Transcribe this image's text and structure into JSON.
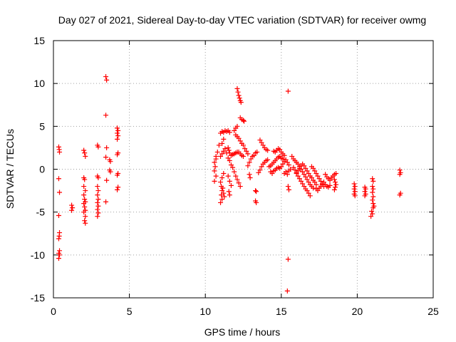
{
  "chart_data": {
    "type": "scatter",
    "title": "Day 027 of 2021, Sidereal Day-to-day VTEC variation (SDTVAR) for receiver owmg",
    "xlabel": "GPS time / hours",
    "ylabel": "SDTVAR / TECUs",
    "xlim": [
      0,
      25
    ],
    "ylim": [
      -15,
      15
    ],
    "xticks": [
      0,
      5,
      10,
      15,
      20,
      25
    ],
    "yticks": [
      -15,
      -10,
      -5,
      0,
      5,
      10,
      15
    ],
    "xtick_labels": [
      "0",
      "5",
      "10",
      "15",
      "20",
      "25"
    ],
    "ytick_labels": [
      "-15",
      "-10",
      "-5",
      "0",
      "5",
      "10",
      "15"
    ],
    "grid": true,
    "marker": "+",
    "color": "#ff0000",
    "series": [
      {
        "name": "SDTVAR",
        "points": [
          [
            0.35,
            2.6
          ],
          [
            0.38,
            2.3
          ],
          [
            0.4,
            2.0
          ],
          [
            0.35,
            -1.1
          ],
          [
            0.4,
            -2.7
          ],
          [
            0.35,
            -5.4
          ],
          [
            0.4,
            -7.4
          ],
          [
            0.38,
            -7.8
          ],
          [
            0.35,
            -8.1
          ],
          [
            0.4,
            -9.5
          ],
          [
            0.35,
            -9.8
          ],
          [
            0.4,
            -10.0
          ],
          [
            0.35,
            -10.4
          ],
          [
            1.2,
            -4.2
          ],
          [
            1.25,
            -4.5
          ],
          [
            1.2,
            -4.8
          ],
          [
            2.0,
            2.2
          ],
          [
            2.05,
            1.9
          ],
          [
            2.1,
            1.5
          ],
          [
            2.0,
            -1.0
          ],
          [
            2.05,
            -1.2
          ],
          [
            2.0,
            -2.0
          ],
          [
            2.1,
            -2.5
          ],
          [
            2.0,
            -3.0
          ],
          [
            2.05,
            -3.5
          ],
          [
            2.1,
            -3.8
          ],
          [
            2.0,
            -4.0
          ],
          [
            2.05,
            -4.4
          ],
          [
            2.1,
            -4.8
          ],
          [
            2.0,
            -5.0
          ],
          [
            2.1,
            -5.5
          ],
          [
            2.05,
            -6.0
          ],
          [
            2.1,
            -6.3
          ],
          [
            2.9,
            2.8
          ],
          [
            2.95,
            2.6
          ],
          [
            2.9,
            -0.8
          ],
          [
            2.95,
            -1.0
          ],
          [
            2.9,
            -2.0
          ],
          [
            2.95,
            -2.5
          ],
          [
            2.9,
            -3.0
          ],
          [
            2.95,
            -3.5
          ],
          [
            2.9,
            -3.9
          ],
          [
            2.95,
            -4.3
          ],
          [
            2.9,
            -4.7
          ],
          [
            2.95,
            -5.1
          ],
          [
            2.9,
            -5.5
          ],
          [
            3.45,
            10.8
          ],
          [
            3.5,
            10.4
          ],
          [
            3.45,
            6.3
          ],
          [
            3.5,
            2.5
          ],
          [
            3.45,
            1.4
          ],
          [
            3.5,
            -1.3
          ],
          [
            3.45,
            -3.8
          ],
          [
            3.7,
            1.1
          ],
          [
            3.75,
            0.9
          ],
          [
            3.7,
            -0.1
          ],
          [
            3.75,
            -0.3
          ],
          [
            4.2,
            4.8
          ],
          [
            4.25,
            4.5
          ],
          [
            4.2,
            4.2
          ],
          [
            4.25,
            3.9
          ],
          [
            4.2,
            3.5
          ],
          [
            4.25,
            1.9
          ],
          [
            4.2,
            1.7
          ],
          [
            4.25,
            -0.5
          ],
          [
            4.2,
            -0.7
          ],
          [
            4.25,
            -2.1
          ],
          [
            4.2,
            -2.4
          ],
          [
            10.6,
            0.8
          ],
          [
            10.65,
            0.3
          ],
          [
            10.6,
            -0.2
          ],
          [
            10.7,
            -0.8
          ],
          [
            10.6,
            -1.4
          ],
          [
            10.7,
            1.2
          ],
          [
            10.8,
            2.0
          ],
          [
            10.9,
            2.8
          ],
          [
            10.7,
            1.5
          ],
          [
            11.0,
            -1.5
          ],
          [
            11.05,
            -2.0
          ],
          [
            11.1,
            -2.5
          ],
          [
            11.05,
            -3.0
          ],
          [
            11.1,
            -3.5
          ],
          [
            11.0,
            -3.9
          ],
          [
            11.1,
            -1.0
          ],
          [
            11.2,
            -0.5
          ],
          [
            11.15,
            -2.2
          ],
          [
            11.2,
            -2.8
          ],
          [
            11.25,
            -3.2
          ],
          [
            11.0,
            4.2
          ],
          [
            11.1,
            4.4
          ],
          [
            11.2,
            4.3
          ],
          [
            11.3,
            4.5
          ],
          [
            11.4,
            4.4
          ],
          [
            11.5,
            4.5
          ],
          [
            11.6,
            4.3
          ],
          [
            11.2,
            3.5
          ],
          [
            11.1,
            3.0
          ],
          [
            11.0,
            1.5
          ],
          [
            11.1,
            1.8
          ],
          [
            11.2,
            2.1
          ],
          [
            11.3,
            2.4
          ],
          [
            11.4,
            1.9
          ],
          [
            11.5,
            1.3
          ],
          [
            11.6,
            1.0
          ],
          [
            11.7,
            0.5
          ],
          [
            11.8,
            0.2
          ],
          [
            11.9,
            -0.3
          ],
          [
            12.0,
            -0.8
          ],
          [
            12.1,
            -1.2
          ],
          [
            12.2,
            -1.6
          ],
          [
            12.3,
            -2.0
          ],
          [
            11.5,
            -0.8
          ],
          [
            11.6,
            -1.4
          ],
          [
            11.7,
            -1.9
          ],
          [
            11.55,
            -2.6
          ],
          [
            11.6,
            -3.0
          ],
          [
            11.5,
            2.5
          ],
          [
            11.55,
            2.2
          ],
          [
            11.6,
            1.9
          ],
          [
            11.7,
            1.6
          ],
          [
            11.8,
            1.7
          ],
          [
            11.9,
            1.8
          ],
          [
            12.0,
            1.9
          ],
          [
            12.1,
            2.0
          ],
          [
            12.2,
            2.0
          ],
          [
            12.3,
            1.8
          ],
          [
            12.4,
            1.6
          ],
          [
            12.5,
            1.5
          ],
          [
            11.9,
            4.5
          ],
          [
            12.0,
            4.8
          ],
          [
            12.1,
            5.0
          ],
          [
            12.0,
            4.0
          ],
          [
            12.1,
            3.8
          ],
          [
            12.2,
            3.6
          ],
          [
            12.3,
            3.3
          ],
          [
            12.4,
            3.0
          ],
          [
            12.5,
            2.8
          ],
          [
            12.6,
            2.4
          ],
          [
            12.7,
            2.1
          ],
          [
            12.8,
            1.8
          ],
          [
            12.1,
            9.4
          ],
          [
            12.15,
            9.0
          ],
          [
            12.2,
            8.6
          ],
          [
            12.25,
            8.3
          ],
          [
            12.3,
            8.0
          ],
          [
            12.35,
            7.8
          ],
          [
            12.3,
            6.0
          ],
          [
            12.4,
            5.8
          ],
          [
            12.5,
            5.7
          ],
          [
            12.55,
            5.6
          ],
          [
            12.8,
            0.4
          ],
          [
            12.9,
            0.8
          ],
          [
            13.0,
            1.2
          ],
          [
            13.1,
            1.5
          ],
          [
            13.2,
            1.6
          ],
          [
            13.3,
            1.9
          ],
          [
            13.4,
            2.0
          ],
          [
            12.9,
            -0.6
          ],
          [
            12.95,
            -1.0
          ],
          [
            13.3,
            -2.5
          ],
          [
            13.35,
            -2.6
          ],
          [
            13.3,
            -3.7
          ],
          [
            13.35,
            -3.9
          ],
          [
            13.6,
            3.4
          ],
          [
            13.7,
            3.1
          ],
          [
            13.8,
            2.8
          ],
          [
            13.9,
            2.5
          ],
          [
            14.0,
            2.3
          ],
          [
            14.1,
            2.2
          ],
          [
            13.5,
            -0.4
          ],
          [
            13.6,
            -0.1
          ],
          [
            13.7,
            0.3
          ],
          [
            13.8,
            0.6
          ],
          [
            13.9,
            0.8
          ],
          [
            14.0,
            1.0
          ],
          [
            14.1,
            1.1
          ],
          [
            14.2,
            0.3
          ],
          [
            14.3,
            0.4
          ],
          [
            14.4,
            0.6
          ],
          [
            14.5,
            0.8
          ],
          [
            14.6,
            1.0
          ],
          [
            14.7,
            1.2
          ],
          [
            14.8,
            1.4
          ],
          [
            14.9,
            1.5
          ],
          [
            15.0,
            1.3
          ],
          [
            15.1,
            1.2
          ],
          [
            14.3,
            -0.3
          ],
          [
            14.4,
            -0.5
          ],
          [
            14.5,
            -0.2
          ],
          [
            14.6,
            -0.1
          ],
          [
            14.7,
            0.1
          ],
          [
            14.8,
            0.2
          ],
          [
            14.9,
            0.1
          ],
          [
            14.5,
            2.1
          ],
          [
            14.6,
            2.0
          ],
          [
            14.7,
            2.2
          ],
          [
            14.8,
            2.4
          ],
          [
            14.9,
            2.3
          ],
          [
            15.0,
            2.0
          ],
          [
            15.1,
            1.8
          ],
          [
            15.2,
            1.6
          ],
          [
            15.0,
            0.3
          ],
          [
            15.1,
            0.6
          ],
          [
            15.2,
            0.9
          ],
          [
            15.3,
            1.1
          ],
          [
            15.4,
            0.8
          ],
          [
            15.5,
            0.5
          ],
          [
            15.2,
            -0.5
          ],
          [
            15.3,
            -0.3
          ],
          [
            15.4,
            -0.6
          ],
          [
            15.5,
            -0.2
          ],
          [
            15.6,
            0.0
          ],
          [
            15.45,
            9.1
          ],
          [
            15.45,
            -2.0
          ],
          [
            15.5,
            -2.4
          ],
          [
            15.45,
            -10.5
          ],
          [
            15.4,
            -14.2
          ],
          [
            15.7,
            1.5
          ],
          [
            15.8,
            1.2
          ],
          [
            15.9,
            1.0
          ],
          [
            16.0,
            0.8
          ],
          [
            16.1,
            0.6
          ],
          [
            16.2,
            0.3
          ],
          [
            16.3,
            0.0
          ],
          [
            16.4,
            -0.3
          ],
          [
            16.5,
            -0.6
          ],
          [
            16.6,
            -0.9
          ],
          [
            16.7,
            -1.2
          ],
          [
            16.8,
            -1.5
          ],
          [
            16.9,
            -1.8
          ],
          [
            17.0,
            -2.0
          ],
          [
            17.1,
            -2.2
          ],
          [
            15.8,
            0.2
          ],
          [
            15.9,
            -0.1
          ],
          [
            16.0,
            -0.4
          ],
          [
            16.1,
            -0.8
          ],
          [
            16.2,
            -1.1
          ],
          [
            16.3,
            -1.4
          ],
          [
            16.4,
            -1.7
          ],
          [
            16.5,
            -2.0
          ],
          [
            16.6,
            -2.3
          ],
          [
            16.7,
            -2.5
          ],
          [
            16.8,
            -2.8
          ],
          [
            16.9,
            -3.1
          ],
          [
            16.0,
            -0.5
          ],
          [
            16.1,
            -0.2
          ],
          [
            16.2,
            0.1
          ],
          [
            16.3,
            0.4
          ],
          [
            16.4,
            0.6
          ],
          [
            16.5,
            0.4
          ],
          [
            16.6,
            0.1
          ],
          [
            16.7,
            -0.2
          ],
          [
            16.8,
            -0.5
          ],
          [
            16.9,
            -0.8
          ],
          [
            17.0,
            -1.0
          ],
          [
            17.1,
            -1.3
          ],
          [
            17.2,
            -1.5
          ],
          [
            17.3,
            -1.8
          ],
          [
            17.0,
            0.3
          ],
          [
            17.1,
            0.1
          ],
          [
            17.2,
            -0.2
          ],
          [
            17.3,
            -0.5
          ],
          [
            17.4,
            -0.8
          ],
          [
            17.5,
            -1.1
          ],
          [
            17.6,
            -1.4
          ],
          [
            17.7,
            -1.7
          ],
          [
            17.8,
            -2.0
          ],
          [
            17.3,
            -2.3
          ],
          [
            17.4,
            -2.5
          ],
          [
            17.5,
            -2.2
          ],
          [
            17.6,
            -2.0
          ],
          [
            17.7,
            -1.8
          ],
          [
            17.8,
            -1.5
          ],
          [
            17.9,
            -1.8
          ],
          [
            18.0,
            -2.0
          ],
          [
            18.1,
            -2.1
          ],
          [
            18.2,
            -1.9
          ],
          [
            17.9,
            -0.6
          ],
          [
            18.0,
            -0.9
          ],
          [
            18.1,
            -1.1
          ],
          [
            18.2,
            -1.3
          ],
          [
            18.3,
            -1.0
          ],
          [
            18.4,
            -0.8
          ],
          [
            18.5,
            -0.6
          ],
          [
            18.6,
            -0.5
          ],
          [
            18.5,
            -1.2
          ],
          [
            18.55,
            -1.5
          ],
          [
            18.6,
            -1.8
          ],
          [
            18.55,
            -2.1
          ],
          [
            18.5,
            -2.4
          ],
          [
            19.8,
            -1.7
          ],
          [
            19.85,
            -2.0
          ],
          [
            19.8,
            -2.3
          ],
          [
            19.85,
            -2.6
          ],
          [
            19.8,
            -2.9
          ],
          [
            19.85,
            -3.1
          ],
          [
            20.5,
            -2.1
          ],
          [
            20.55,
            -2.3
          ],
          [
            20.5,
            -2.6
          ],
          [
            20.55,
            -2.9
          ],
          [
            20.5,
            -3.1
          ],
          [
            21.0,
            -1.1
          ],
          [
            21.05,
            -1.4
          ],
          [
            21.0,
            -2.0
          ],
          [
            21.05,
            -2.3
          ],
          [
            21.0,
            -2.7
          ],
          [
            21.05,
            -3.2
          ],
          [
            21.0,
            -3.6
          ],
          [
            21.05,
            -4.0
          ],
          [
            21.1,
            -4.3
          ],
          [
            21.05,
            -4.5
          ],
          [
            20.95,
            -4.9
          ],
          [
            21.0,
            -5.2
          ],
          [
            20.9,
            -5.5
          ],
          [
            22.8,
            -0.1
          ],
          [
            22.85,
            -0.4
          ],
          [
            22.8,
            -0.6
          ],
          [
            22.85,
            -2.8
          ],
          [
            22.8,
            -3.0
          ]
        ]
      }
    ]
  }
}
